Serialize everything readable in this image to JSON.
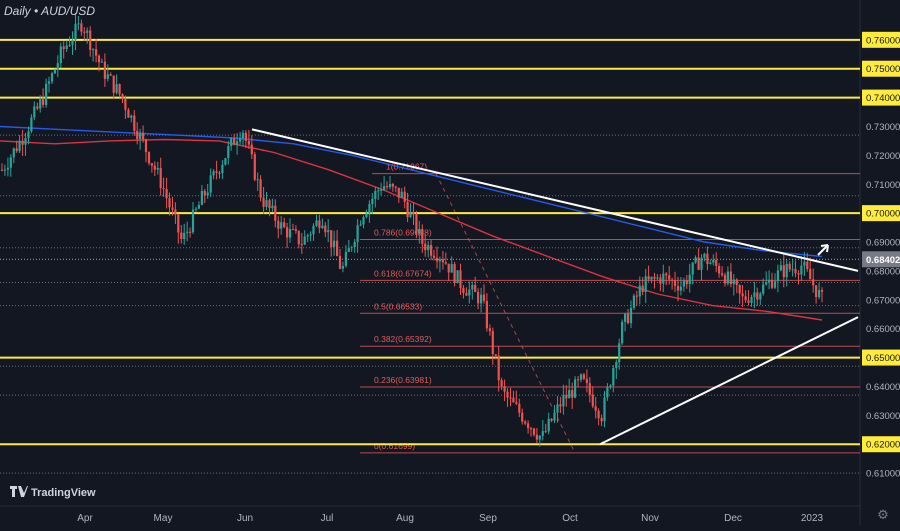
{
  "chart_data": {
    "type": "candlestick",
    "title": "Daily • AUD/USD",
    "ylim": [
      0.6,
      0.7724
    ],
    "x_tick_labels": [
      "Apr",
      "May",
      "Jun",
      "Jul",
      "Aug",
      "Sep",
      "Oct",
      "Nov",
      "Dec",
      "2023"
    ],
    "y_tick_labels": [
      "0.76000",
      "0.75000",
      "0.74000",
      "0.73000",
      "0.72000",
      "0.71000",
      "0.70000",
      "0.69000",
      "0.68000",
      "0.67000",
      "0.66000",
      "0.65000",
      "0.64000",
      "0.63000",
      "0.62000",
      "0.61000"
    ],
    "y_tick_values": [
      0.76,
      0.75,
      0.74,
      0.73,
      0.72,
      0.71,
      0.7,
      0.69,
      0.68,
      0.67,
      0.66,
      0.65,
      0.64,
      0.63,
      0.62,
      0.61
    ],
    "highlighted_levels": [
      0.76,
      0.75,
      0.74,
      0.7,
      0.65,
      0.62
    ],
    "highlighted_label_color": "#ffeb3b",
    "current_price": "0.68402",
    "current_price_value": 0.68402,
    "fib_levels": [
      {
        "label": "1(0.71367)",
        "value": 0.71367
      },
      {
        "label": "0.786(0.69088)",
        "value": 0.69088
      },
      {
        "label": "0.618(0.67674)",
        "value": 0.67674
      },
      {
        "label": "0.5(0.66533)",
        "value": 0.66533
      },
      {
        "label": "0.382(0.65392)",
        "value": 0.65392
      },
      {
        "label": "0.236(0.63981)",
        "value": 0.63981
      },
      {
        "label": "0(0.61699)",
        "value": 0.61699
      }
    ],
    "dotted_levels": [
      0.727,
      0.706,
      0.688,
      0.684,
      0.676,
      0.668,
      0.647,
      0.637,
      0.61
    ],
    "price_path": [
      0.715,
      0.726,
      0.739,
      0.756,
      0.766,
      0.75,
      0.74,
      0.725,
      0.71,
      0.69,
      0.705,
      0.718,
      0.73,
      0.705,
      0.695,
      0.69,
      0.699,
      0.68,
      0.7,
      0.71,
      0.706,
      0.69,
      0.685,
      0.675,
      0.67,
      0.638,
      0.63,
      0.622,
      0.635,
      0.642,
      0.63,
      0.66,
      0.675,
      0.678,
      0.675,
      0.685,
      0.68,
      0.67,
      0.674,
      0.68,
      0.682,
      0.67
    ],
    "ma_blue": [
      0.73,
      0.729,
      0.728,
      0.727,
      0.726,
      0.724,
      0.72,
      0.715,
      0.71,
      0.705,
      0.7,
      0.695,
      0.69,
      0.687,
      0.685
    ],
    "ma_red": [
      0.725,
      0.724,
      0.725,
      0.7255,
      0.725,
      0.721,
      0.715,
      0.708,
      0.7,
      0.692,
      0.685,
      0.678,
      0.672,
      0.668,
      0.666,
      0.663
    ],
    "trendlines": [
      {
        "from_price": 0.729,
        "to_price": 0.68
      },
      {
        "from_price": 0.62,
        "to_price": 0.664
      }
    ],
    "colors": {
      "background": "#131722",
      "bull": "#26a69a",
      "bear": "#ef5350",
      "yellow_level": "#ffeb3b",
      "fib": "#e35b5b",
      "ma_blue": "#2962ff",
      "ma_red": "#f23645",
      "trendline": "#ffffff"
    }
  },
  "brand": "TradingView"
}
